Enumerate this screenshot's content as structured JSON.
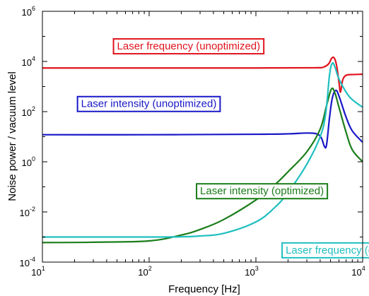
{
  "chart_data": {
    "type": "line",
    "xlabel": "Frequency [Hz]",
    "ylabel": "Noise power / vacuum level",
    "xscale": "log",
    "yscale": "log",
    "xlim": [
      10,
      10000
    ],
    "ylim": [
      0.0001,
      1000000
    ],
    "grid": false,
    "x_ticks": [
      {
        "base": "10",
        "exp": "1",
        "value": 10
      },
      {
        "base": "10",
        "exp": "2",
        "value": 100
      },
      {
        "base": "10",
        "exp": "3",
        "value": 1000
      },
      {
        "base": "10",
        "exp": "4",
        "value": 10000
      }
    ],
    "y_ticks": [
      {
        "base": "10",
        "exp": "-4",
        "value": 0.0001
      },
      {
        "base": "10",
        "exp": "-2",
        "value": 0.01
      },
      {
        "base": "10",
        "exp": "0",
        "value": 1
      },
      {
        "base": "10",
        "exp": "2",
        "value": 100
      },
      {
        "base": "10",
        "exp": "4",
        "value": 10000
      },
      {
        "base": "10",
        "exp": "6",
        "value": 1000000
      }
    ],
    "series": [
      {
        "name": "Laser frequency  (unoptimized)",
        "color": "#e0141e",
        "x": [
          10,
          100,
          1000,
          3500,
          4300,
          4800,
          5100,
          5400,
          5700,
          6000,
          6200,
          6500,
          7000,
          8000,
          10000
        ],
        "y": [
          5500,
          5500,
          5500,
          5600,
          6000,
          8000,
          13000,
          14000,
          7000,
          1500,
          600,
          1800,
          2800,
          3000,
          3100
        ]
      },
      {
        "name": "Laser intensity (unoptimized)",
        "color": "#1818c8",
        "x": [
          10,
          100,
          1000,
          2000,
          3000,
          3700,
          4100,
          4400,
          4600,
          4900,
          5200,
          5600,
          6000,
          7000,
          8000,
          10000
        ],
        "y": [
          12,
          12,
          12.5,
          13,
          14,
          13,
          9,
          4,
          5,
          60,
          350,
          700,
          420,
          60,
          17,
          6
        ]
      },
      {
        "name": "Laser intensity (optimized)",
        "color": "#1a7d1a",
        "x": [
          10,
          30,
          100,
          200,
          300,
          500,
          1000,
          1500,
          2000,
          3000,
          4000,
          4600,
          5100,
          5500,
          6000,
          7000,
          8000,
          10000
        ],
        "y": [
          0.0006,
          0.00062,
          0.0007,
          0.0012,
          0.002,
          0.005,
          0.03,
          0.12,
          0.4,
          2.5,
          20,
          180,
          800,
          550,
          150,
          15,
          3,
          1
        ]
      },
      {
        "name": "Laser frequency (optimized)",
        "color": "#1fbfc0",
        "x": [
          10,
          100,
          200,
          300,
          500,
          1000,
          1500,
          2000,
          3000,
          4000,
          4500,
          4900,
          5200,
          5500,
          6000,
          7000,
          8000,
          10000
        ],
        "y": [
          0.001,
          0.001,
          0.00102,
          0.0011,
          0.0014,
          0.004,
          0.015,
          0.06,
          0.8,
          10,
          80,
          3000,
          8500,
          6000,
          2000,
          600,
          300,
          150
        ]
      }
    ],
    "annotations": [
      {
        "text": "Laser frequency  (unoptimized)",
        "color": "#e0141e",
        "x": 50,
        "y": 30000
      },
      {
        "text": "Laser intensity (unoptimized)",
        "color": "#1818c8",
        "x": 23,
        "y": 150
      },
      {
        "text": "Laser intensity (optimized)",
        "color": "#1a7d1a",
        "x": 300,
        "y": 0.05
      },
      {
        "text": "Laser frequency (optimized)",
        "color": "#1fbfc0",
        "x": 1900,
        "y": 0.00022
      }
    ]
  }
}
